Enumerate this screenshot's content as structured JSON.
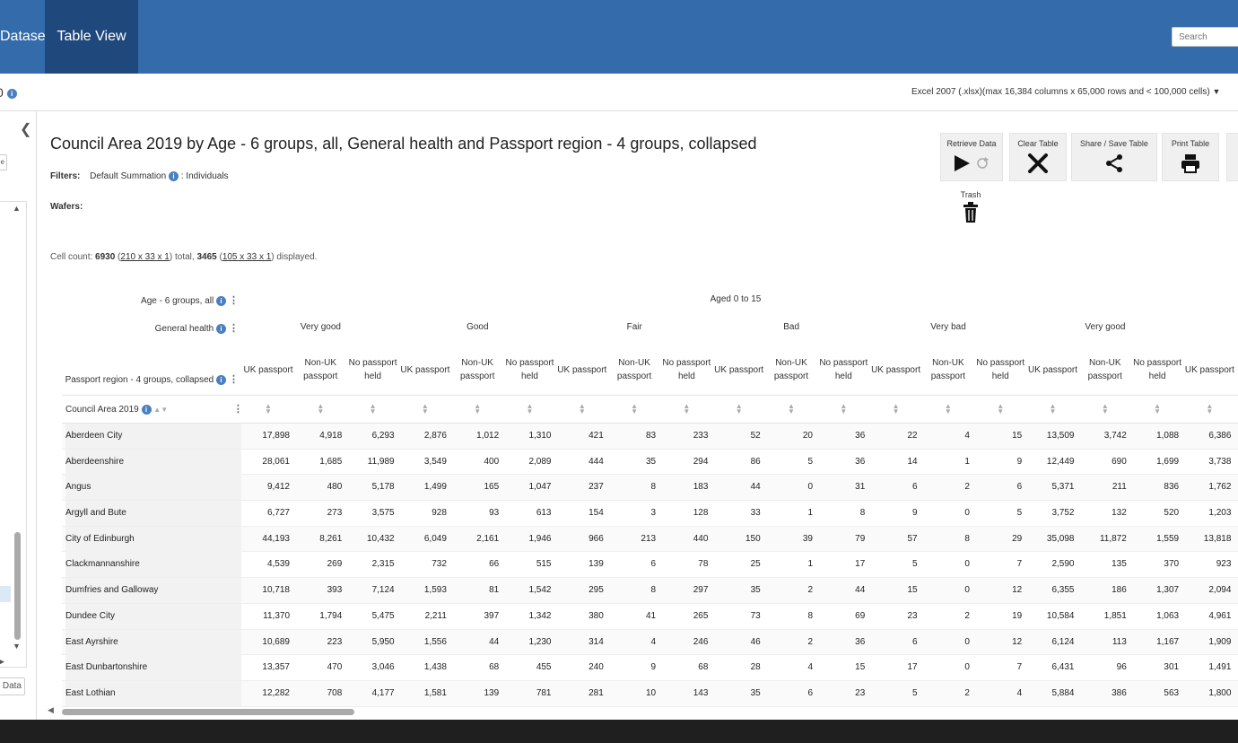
{
  "nav": {
    "datasets_label": "Datasets",
    "table_view_label": "Table View",
    "search_placeholder": "Search"
  },
  "subbar": {
    "left_text": "0",
    "format_label": "Excel 2007 (.xlsx)(max 16,384 columns x 65,000 rows and < 100,000 cells)"
  },
  "sidebar": {
    "data_button": "Data"
  },
  "title": "Council Area 2019 by Age - 6 groups, all, General health and Passport region - 4 groups, collapsed",
  "filters": {
    "label": "Filters:",
    "summation": "Default Summation",
    "value": ": Individuals"
  },
  "wafers_label": "Wafers:",
  "cell_count": {
    "prefix": "Cell count: ",
    "total": "6930",
    "total_dims": "210 x 33 x 1",
    "mid": ") total, ",
    "displayed": "3465",
    "displayed_dims": "105 x 33 x 1",
    "suffix": ") displayed."
  },
  "toolbar": {
    "retrieve": "Retrieve Data",
    "clear": "Clear Table",
    "share": "Share / Save Table",
    "print": "Print Table",
    "trash": "Trash"
  },
  "table": {
    "age_label": "Age - 6 groups, all",
    "health_label": "General health",
    "passport_label": "Passport region - 4 groups, collapsed",
    "row_header": "Council Area 2019",
    "age_group": "Aged 0 to 15",
    "health_groups": [
      "Very good",
      "Good",
      "Fair",
      "Bad",
      "Very bad",
      "Very good"
    ],
    "col_headers": [
      "UK passport",
      "Non-UK passport",
      "No passport held",
      "UK passport",
      "Non-UK passport",
      "No passport held",
      "UK passport",
      "Non-UK passport",
      "No passport held",
      "UK passport",
      "Non-UK passport",
      "No passport held",
      "UK passport",
      "Non-UK passport",
      "No passport held",
      "UK passport",
      "Non-UK passport",
      "No passport held",
      "UK passport"
    ],
    "rows": [
      {
        "name": "Aberdeen City",
        "values": [
          "17,898",
          "4,918",
          "6,293",
          "2,876",
          "1,012",
          "1,310",
          "421",
          "83",
          "233",
          "52",
          "20",
          "36",
          "22",
          "4",
          "15",
          "13,509",
          "3,742",
          "1,088",
          "6,386"
        ]
      },
      {
        "name": "Aberdeenshire",
        "values": [
          "28,061",
          "1,685",
          "11,989",
          "3,549",
          "400",
          "2,089",
          "444",
          "35",
          "294",
          "86",
          "5",
          "36",
          "14",
          "1",
          "9",
          "12,449",
          "690",
          "1,699",
          "3,738"
        ]
      },
      {
        "name": "Angus",
        "values": [
          "9,412",
          "480",
          "5,178",
          "1,499",
          "165",
          "1,047",
          "237",
          "8",
          "183",
          "44",
          "0",
          "31",
          "6",
          "2",
          "6",
          "5,371",
          "211",
          "836",
          "1,762"
        ]
      },
      {
        "name": "Argyll and Bute",
        "values": [
          "6,727",
          "273",
          "3,575",
          "928",
          "93",
          "613",
          "154",
          "3",
          "128",
          "33",
          "1",
          "8",
          "9",
          "0",
          "5",
          "3,752",
          "132",
          "520",
          "1,203"
        ]
      },
      {
        "name": "City of Edinburgh",
        "values": [
          "44,193",
          "8,261",
          "10,432",
          "6,049",
          "2,161",
          "1,946",
          "966",
          "213",
          "440",
          "150",
          "39",
          "79",
          "57",
          "8",
          "29",
          "35,098",
          "11,872",
          "1,559",
          "13,818"
        ]
      },
      {
        "name": "Clackmannanshire",
        "values": [
          "4,539",
          "269",
          "2,315",
          "732",
          "66",
          "515",
          "139",
          "6",
          "78",
          "25",
          "1",
          "17",
          "5",
          "0",
          "7",
          "2,590",
          "135",
          "370",
          "923"
        ]
      },
      {
        "name": "Dumfries and Galloway",
        "values": [
          "10,718",
          "393",
          "7,124",
          "1,593",
          "81",
          "1,542",
          "295",
          "8",
          "297",
          "35",
          "2",
          "44",
          "15",
          "0",
          "12",
          "6,355",
          "186",
          "1,307",
          "2,094"
        ]
      },
      {
        "name": "Dundee City",
        "values": [
          "11,370",
          "1,794",
          "5,475",
          "2,211",
          "397",
          "1,342",
          "380",
          "41",
          "265",
          "73",
          "8",
          "69",
          "23",
          "2",
          "19",
          "10,584",
          "1,851",
          "1,063",
          "4,961"
        ]
      },
      {
        "name": "East Ayrshire",
        "values": [
          "10,689",
          "223",
          "5,950",
          "1,556",
          "44",
          "1,230",
          "314",
          "4",
          "246",
          "46",
          "2",
          "36",
          "6",
          "0",
          "12",
          "6,124",
          "113",
          "1,167",
          "1,909"
        ]
      },
      {
        "name": "East Dunbartonshire",
        "values": [
          "13,357",
          "470",
          "3,046",
          "1,438",
          "68",
          "455",
          "240",
          "9",
          "68",
          "28",
          "4",
          "15",
          "17",
          "0",
          "7",
          "6,431",
          "96",
          "301",
          "1,491"
        ]
      },
      {
        "name": "East Lothian",
        "values": [
          "12,282",
          "708",
          "4,177",
          "1,581",
          "139",
          "781",
          "281",
          "10",
          "143",
          "35",
          "6",
          "23",
          "5",
          "2",
          "4",
          "5,884",
          "386",
          "563",
          "1,800"
        ]
      }
    ]
  },
  "colors": {
    "header_blue": "#336bab",
    "active_tab": "#1f497d",
    "info_blue": "#4a7fc0"
  }
}
